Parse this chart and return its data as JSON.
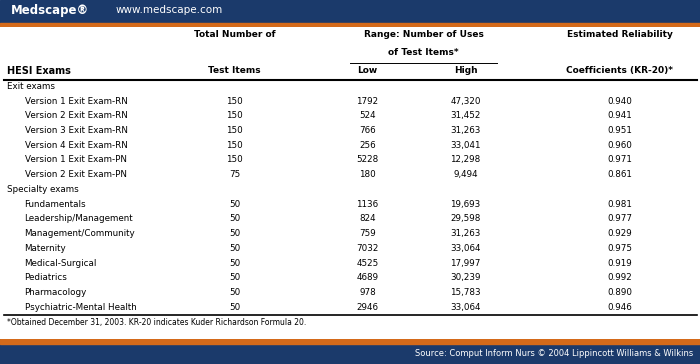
{
  "header_bar_color": "#1b3a6b",
  "orange_bar_color": "#d46a1a",
  "bg_color": "#ffffff",
  "footer_bar_color": "#1b3a6b",
  "logo_text": "Medscape®",
  "url_text": "www.medscape.com",
  "footnote": "*Obtained December 31, 2003. KR-20 indicates Kuder Richardson Formula 20.",
  "source_text": "Source: Comput Inform Nurs © 2004 Lippincott Williams & Wilkins",
  "section_exit": "Exit exams",
  "section_specialty": "Specialty exams",
  "rows": [
    [
      "Version 1 Exit Exam-RN",
      "150",
      "1792",
      "47,320",
      "0.940"
    ],
    [
      "Version 2 Exit Exam-RN",
      "150",
      "524",
      "31,452",
      "0.941"
    ],
    [
      "Version 3 Exit Exam-RN",
      "150",
      "766",
      "31,263",
      "0.951"
    ],
    [
      "Version 4 Exit Exam-RN",
      "150",
      "256",
      "33,041",
      "0.960"
    ],
    [
      "Version 1 Exit Exam-PN",
      "150",
      "5228",
      "12,298",
      "0.971"
    ],
    [
      "Version 2 Exit Exam-PN",
      "75",
      "180",
      "9,494",
      "0.861"
    ],
    [
      "Fundamentals",
      "50",
      "1136",
      "19,693",
      "0.981"
    ],
    [
      "Leadership/Management",
      "50",
      "824",
      "29,598",
      "0.977"
    ],
    [
      "Management/Community",
      "50",
      "759",
      "31,263",
      "0.929"
    ],
    [
      "Maternity",
      "50",
      "7032",
      "33,064",
      "0.975"
    ],
    [
      "Medical-Surgical",
      "50",
      "4525",
      "17,997",
      "0.919"
    ],
    [
      "Pediatrics",
      "50",
      "4689",
      "30,239",
      "0.992"
    ],
    [
      "Pharmacology",
      "50",
      "978",
      "15,783",
      "0.890"
    ],
    [
      "Psychiatric-Mental Health",
      "50",
      "2946",
      "33,064",
      "0.946"
    ]
  ]
}
